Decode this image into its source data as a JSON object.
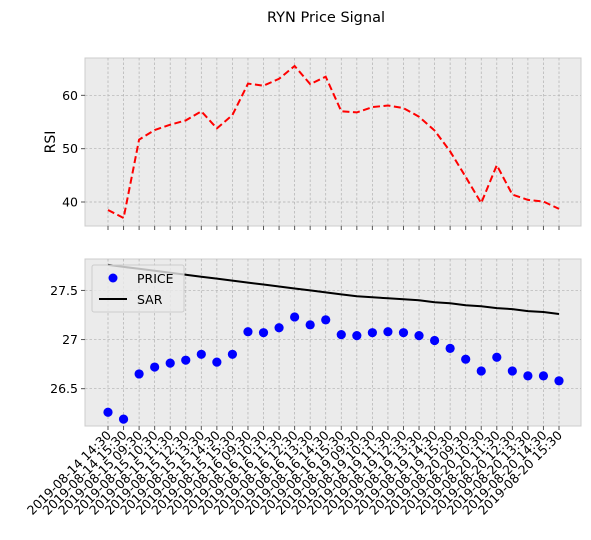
{
  "chart_data": {
    "title": "RYN Price Signal",
    "x": [
      "2019-08-14 14:30",
      "2019-08-14 15:30",
      "2019-08-15 09:30",
      "2019-08-15 10:30",
      "2019-08-15 11:30",
      "2019-08-15 12:30",
      "2019-08-15 13:30",
      "2019-08-15 14:30",
      "2019-08-15 15:30",
      "2019-08-16 09:30",
      "2019-08-16 10:30",
      "2019-08-16 11:30",
      "2019-08-16 12:30",
      "2019-08-16 13:30",
      "2019-08-16 14:30",
      "2019-08-16 15:30",
      "2019-08-19 09:30",
      "2019-08-19 10:30",
      "2019-08-19 11:30",
      "2019-08-19 12:30",
      "2019-08-19 13:30",
      "2019-08-19 14:30",
      "2019-08-19 15:30",
      "2019-08-20 09:30",
      "2019-08-20 10:30",
      "2019-08-20 11:30",
      "2019-08-20 12:30",
      "2019-08-20 13:30",
      "2019-08-20 14:30",
      "2019-08-20 15:30"
    ],
    "panels": [
      {
        "type": "line",
        "ylabel": "RSI",
        "ylim": [
          35.5,
          67.0
        ],
        "yticks": [
          40,
          50,
          60
        ],
        "grid": true,
        "series": [
          {
            "values": [
              38.5,
              37.0,
              51.7,
              53.5,
              54.5,
              55.3,
              57.0,
              53.8,
              56.3,
              62.2,
              61.8,
              63.1,
              65.5,
              62.1,
              63.5,
              57.0,
              56.8,
              57.8,
              58.1,
              57.6,
              56.0,
              53.4,
              49.5,
              44.7,
              39.8,
              46.9,
              41.4,
              40.4,
              40.1,
              38.7
            ],
            "color": "#ff0000",
            "style": "dashed"
          }
        ]
      },
      {
        "type": "scatter+line",
        "ylim": [
          26.12,
          27.82
        ],
        "yticks": [
          26.5,
          27.0,
          27.5
        ],
        "grid": true,
        "legend": "top-left",
        "series": [
          {
            "name": "PRICE",
            "values": [
              26.26,
              26.19,
              26.65,
              26.72,
              26.76,
              26.79,
              26.85,
              26.77,
              26.85,
              27.08,
              27.07,
              27.12,
              27.23,
              27.15,
              27.2,
              27.05,
              27.04,
              27.07,
              27.08,
              27.07,
              27.04,
              26.99,
              26.91,
              26.8,
              26.68,
              26.82,
              26.68,
              26.63,
              26.63,
              26.58
            ],
            "color": "#0000ff",
            "marker": "circle"
          },
          {
            "name": "SAR",
            "values": [
              27.76,
              27.74,
              27.72,
              27.7,
              27.68,
              27.66,
              27.64,
              27.62,
              27.6,
              27.58,
              27.56,
              27.54,
              27.52,
              27.5,
              27.48,
              27.46,
              27.44,
              27.43,
              27.42,
              27.41,
              27.4,
              27.38,
              27.37,
              27.35,
              27.34,
              27.32,
              27.31,
              27.29,
              27.28,
              27.26
            ],
            "color": "#000000",
            "style": "solid"
          }
        ]
      }
    ]
  }
}
